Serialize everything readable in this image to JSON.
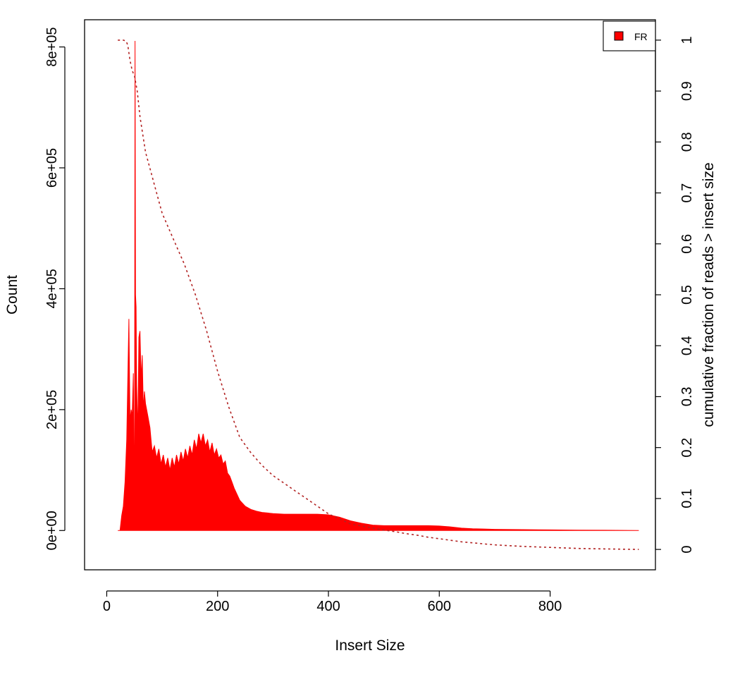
{
  "chart_data": {
    "type": "area",
    "title": "",
    "xlabel": "Insert Size",
    "ylabel": "Count",
    "y2label": "cumulative fraction of reads > insert size",
    "xlim": [
      -40,
      990
    ],
    "ylim": [
      -65000,
      845000
    ],
    "y2lim": [
      -0.04,
      1.04
    ],
    "xticks": [
      0,
      200,
      400,
      600,
      800
    ],
    "xtick_labels": [
      "0",
      "200",
      "400",
      "600",
      "800"
    ],
    "yticks": [
      0,
      200000,
      400000,
      600000,
      800000
    ],
    "ytick_labels": [
      "0e+00",
      "2e+05",
      "4e+05",
      "6e+05",
      "8e+05"
    ],
    "y2ticks": [
      0,
      0.1,
      0.2,
      0.3,
      0.4,
      0.5,
      0.6,
      0.7,
      0.8,
      0.9,
      1
    ],
    "y2tick_labels": [
      "0",
      "0.1",
      "0.2",
      "0.3",
      "0.4",
      "0.5",
      "0.6",
      "0.7",
      "0.8",
      "0.9",
      "1"
    ],
    "grid": false,
    "legend": {
      "position": "top-right",
      "entries": [
        {
          "label": "FR",
          "color": "#ff0000"
        }
      ]
    },
    "series": [
      {
        "name": "FR",
        "axis": "left",
        "style": "filled",
        "color": "#ff0000",
        "x": [
          20,
          24,
          27,
          30,
          33,
          36,
          39,
          40,
          42,
          44,
          46,
          48,
          50,
          51,
          52,
          53,
          54,
          56,
          58,
          60,
          62,
          64,
          66,
          68,
          70,
          74,
          78,
          82,
          86,
          90,
          94,
          98,
          102,
          106,
          110,
          114,
          118,
          122,
          126,
          130,
          134,
          138,
          142,
          146,
          150,
          154,
          158,
          162,
          166,
          170,
          174,
          178,
          182,
          186,
          190,
          194,
          198,
          202,
          206,
          210,
          214,
          218,
          222,
          226,
          230,
          235,
          240,
          245,
          250,
          260,
          270,
          280,
          290,
          300,
          320,
          340,
          360,
          380,
          400,
          420,
          440,
          460,
          480,
          500,
          520,
          540,
          560,
          580,
          600,
          620,
          640,
          660,
          680,
          700,
          750,
          800,
          850,
          900,
          960
        ],
        "y": [
          0,
          0,
          25000,
          40000,
          80000,
          150000,
          300000,
          350000,
          180000,
          200000,
          190000,
          260000,
          0,
          810000,
          390000,
          370000,
          240000,
          160000,
          320000,
          330000,
          250000,
          290000,
          200000,
          230000,
          210000,
          190000,
          170000,
          130000,
          140000,
          120000,
          135000,
          110000,
          125000,
          105000,
          120000,
          100000,
          120000,
          105000,
          125000,
          110000,
          130000,
          115000,
          135000,
          120000,
          140000,
          125000,
          150000,
          135000,
          160000,
          145000,
          160000,
          140000,
          150000,
          130000,
          145000,
          125000,
          135000,
          120000,
          125000,
          110000,
          115000,
          95000,
          90000,
          80000,
          70000,
          60000,
          50000,
          45000,
          40000,
          35000,
          32000,
          30000,
          29000,
          28000,
          27000,
          27000,
          27000,
          27000,
          26000,
          22000,
          16000,
          12000,
          9000,
          8000,
          8000,
          8000,
          8000,
          8000,
          7500,
          6000,
          4000,
          3000,
          2500,
          2000,
          1500,
          1000,
          700,
          400,
          0
        ]
      },
      {
        "name": "",
        "axis": "right",
        "style": "dotted",
        "color": "#b22222",
        "x": [
          20,
          30,
          35,
          38,
          42,
          46,
          50,
          55,
          60,
          70,
          80,
          90,
          100,
          120,
          140,
          160,
          180,
          200,
          220,
          240,
          260,
          280,
          300,
          320,
          340,
          360,
          380,
          400,
          420,
          440,
          460,
          480,
          500,
          520,
          540,
          560,
          580,
          600,
          620,
          640,
          660,
          680,
          700,
          750,
          800,
          850,
          900,
          960
        ],
        "y": [
          1.0,
          1.0,
          0.998,
          0.99,
          0.96,
          0.94,
          0.93,
          0.9,
          0.85,
          0.78,
          0.74,
          0.7,
          0.66,
          0.61,
          0.56,
          0.5,
          0.43,
          0.35,
          0.28,
          0.22,
          0.19,
          0.165,
          0.145,
          0.13,
          0.115,
          0.1,
          0.085,
          0.07,
          0.06,
          0.05,
          0.046,
          0.042,
          0.038,
          0.035,
          0.031,
          0.028,
          0.024,
          0.021,
          0.018,
          0.015,
          0.013,
          0.011,
          0.009,
          0.006,
          0.004,
          0.002,
          0.001,
          0.0
        ]
      }
    ]
  }
}
